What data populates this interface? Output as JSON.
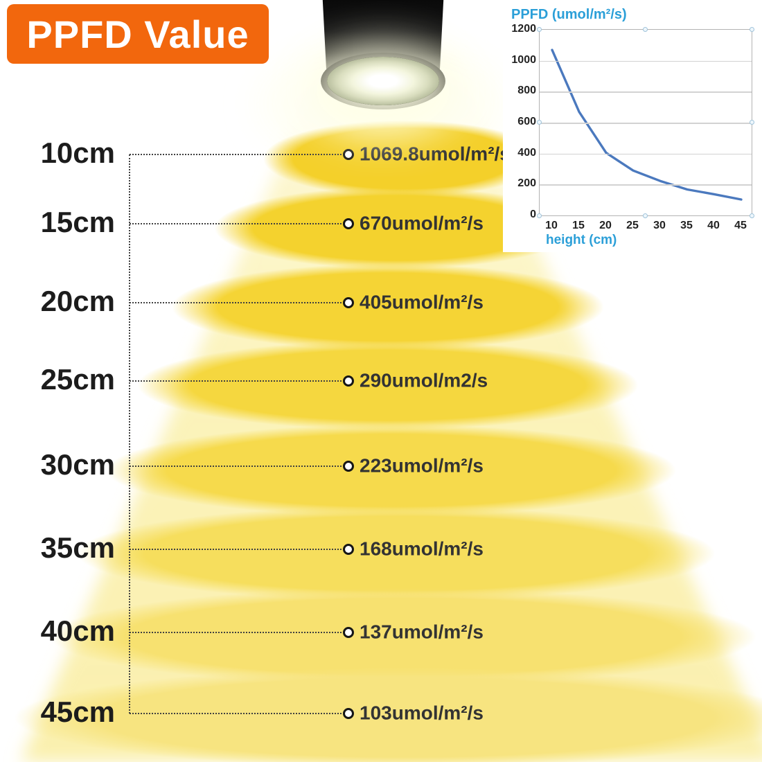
{
  "banner": {
    "label": "PPFD Value"
  },
  "diagram": {
    "rows": [
      {
        "height_label": "10cm",
        "value": "1069.8umol/m²/s"
      },
      {
        "height_label": "15cm",
        "value": "670umol/m²/s"
      },
      {
        "height_label": "20cm",
        "value": "405umol/m²/s"
      },
      {
        "height_label": "25cm",
        "value": "290umol/m2/s"
      },
      {
        "height_label": "30cm",
        "value": "223umol/m²/s"
      },
      {
        "height_label": "35cm",
        "value": "168umol/m²/s"
      },
      {
        "height_label": "40cm",
        "value": "137umol/m²/s"
      },
      {
        "height_label": "45cm",
        "value": "103umol/m²/s"
      }
    ]
  },
  "chart_data": {
    "type": "line",
    "title": "PPFD (umol/m²/s)",
    "xlabel": "height (cm)",
    "x": [
      10,
      15,
      20,
      25,
      30,
      35,
      40,
      45
    ],
    "values": [
      1069.8,
      670,
      405,
      290,
      223,
      168,
      137,
      103
    ],
    "x_ticks": [
      10,
      15,
      20,
      25,
      30,
      35,
      40,
      45
    ],
    "y_ticks": [
      0,
      200,
      400,
      600,
      800,
      1000,
      1200
    ],
    "ylim": [
      0,
      1200
    ],
    "grid": true,
    "legend": "none",
    "line_color": "#4B79BE"
  },
  "colors": {
    "banner_orange": "#F2670D",
    "ellipse_gold": "#F4D02A",
    "beam_yellow": "#FBF2B7",
    "chart_label_blue": "#2B9FD8",
    "curve_blue": "#4B79BE",
    "text_dark": "#333333"
  }
}
